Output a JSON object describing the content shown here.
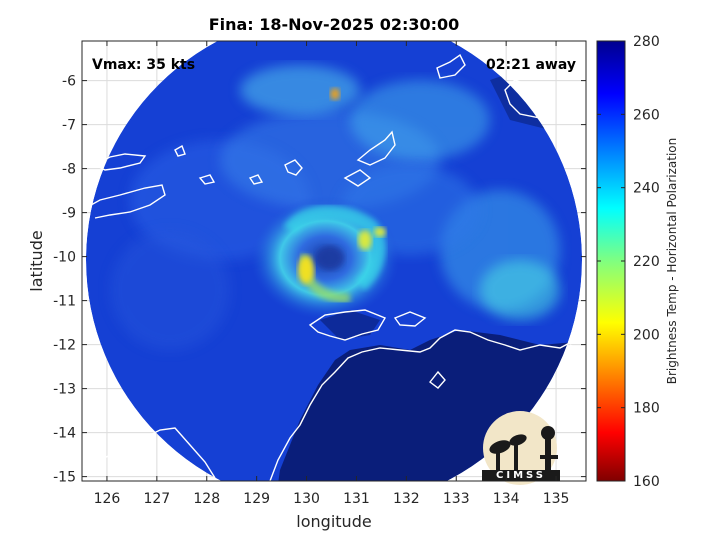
{
  "title": "Fina: 18-Nov-2025 02:30:00",
  "vmax_label": "Vmax: 35 kts",
  "time_away_label": "02:21 away",
  "logo_text": "CIMSS",
  "chart_data": {
    "type": "heatmap",
    "title": "Fina: 18-Nov-2025 02:30:00",
    "xlabel": "longitude",
    "ylabel": "latitude",
    "xlim": [
      125.5,
      135.6
    ],
    "ylim": [
      -15.1,
      -5.1
    ],
    "x_ticks": [
      126,
      127,
      128,
      129,
      130,
      131,
      132,
      133,
      134,
      135
    ],
    "y_ticks": [
      -6,
      -7,
      -8,
      -9,
      -10,
      -11,
      -12,
      -13,
      -14,
      -15
    ],
    "grid": true,
    "colorbar": {
      "label": "Brightness Temp - Horizontal Polarization",
      "range": [
        160,
        280
      ],
      "ticks": [
        280,
        260,
        240,
        220,
        200,
        180,
        160
      ],
      "colormap": "jet"
    },
    "swath": {
      "center_lon": 130.55,
      "center_lat": -9.95,
      "radius_deg": 4.95
    },
    "storm_center": {
      "lon": 130.3,
      "lat": -10.3
    },
    "notable_features": [
      {
        "desc": "rainband minimum",
        "lon": 129.9,
        "lat": -10.4,
        "value": 205
      },
      {
        "desc": "rainband minimum",
        "lon": 130.8,
        "lat": -9.8,
        "value": 215
      },
      {
        "desc": "convective cell",
        "lon": 130.1,
        "lat": -6.3,
        "value": 200
      }
    ]
  },
  "colors": {
    "ocean": "#0f37c8",
    "land_deep": "#0a1a6e",
    "coastline": "#ffffff",
    "colormap_stops": [
      "#800000",
      "#ff0000",
      "#ffff00",
      "#00ffff",
      "#0000ff",
      "#00008f"
    ]
  }
}
